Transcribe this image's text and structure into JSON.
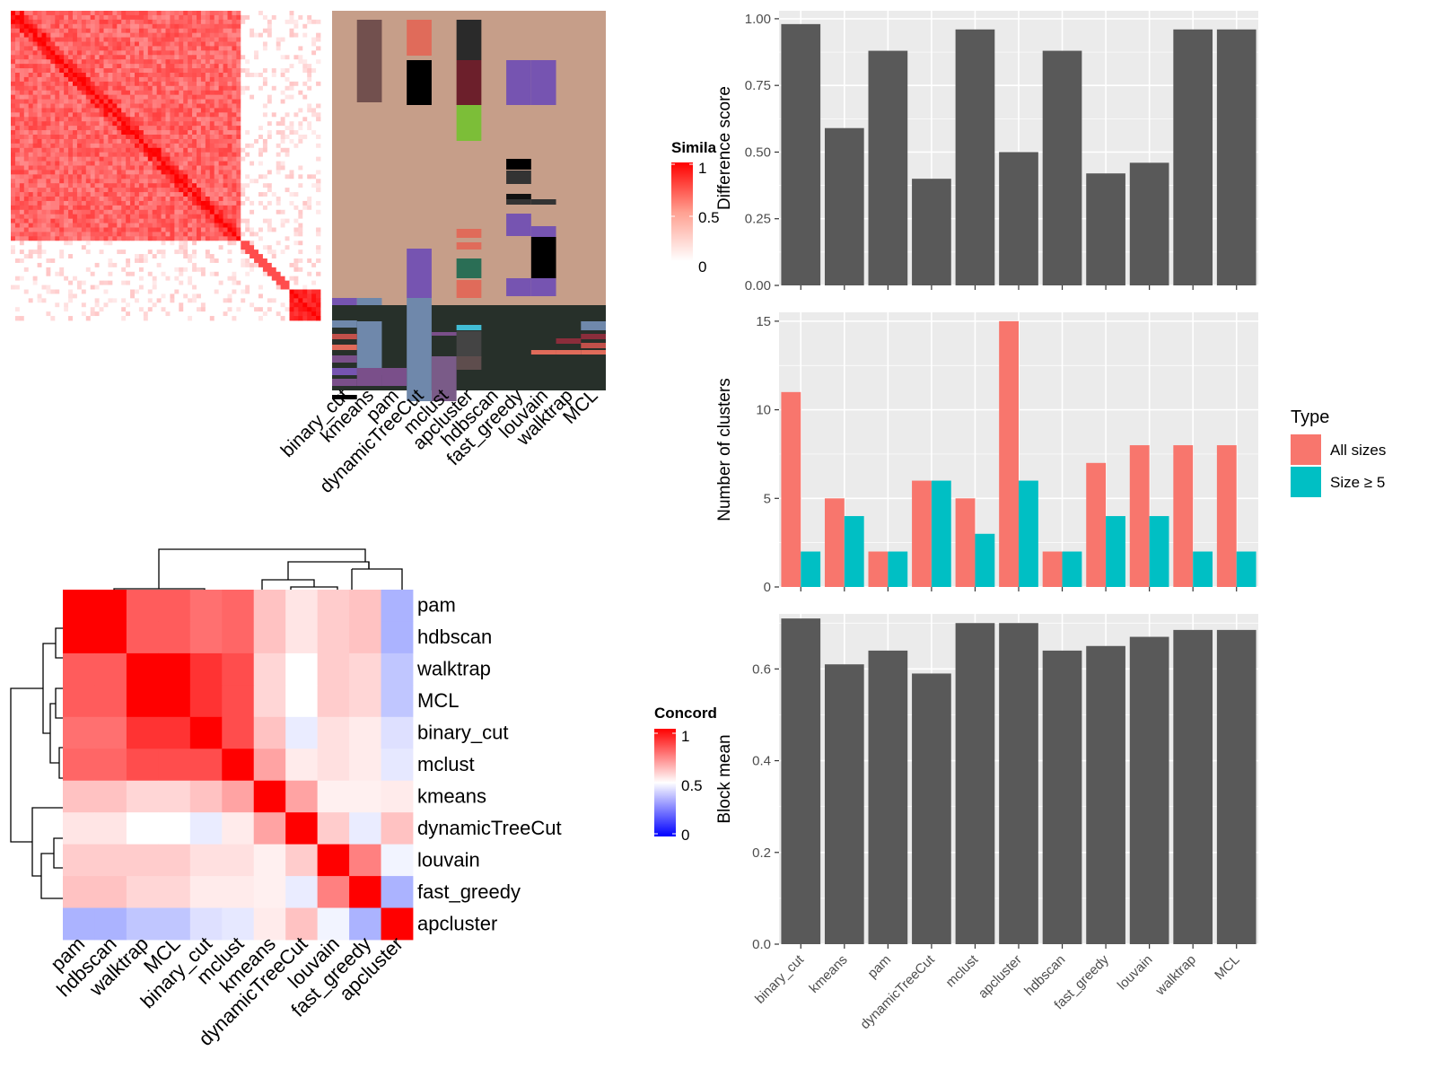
{
  "colors": {
    "panel_bg": "#ebebeb",
    "grid": "#ffffff",
    "bar_gray": "#595959",
    "all_sizes": "#f8766d",
    "size_ge5": "#00bfc4",
    "heat_high": "#ff0000",
    "heat_mid": "#ffffff",
    "heat_low": "#0000ff"
  },
  "similarity_legend": {
    "title": "Simila",
    "ticks": [
      "1",
      "0.5",
      "0"
    ]
  },
  "concordance_legend": {
    "title": "Concord",
    "ticks": [
      "1",
      "0.5",
      "0"
    ]
  },
  "methods_top": [
    "binary_cut",
    "kmeans",
    "pam",
    "dynamicTreeCut",
    "mclust",
    "apcluster",
    "hdbscan",
    "fast_greedy",
    "louvain",
    "walktrap",
    "MCL"
  ],
  "methods_order": [
    "pam",
    "hdbscan",
    "walktrap",
    "MCL",
    "binary_cut",
    "mclust",
    "kmeans",
    "dynamicTreeCut",
    "louvain",
    "fast_greedy",
    "apcluster"
  ],
  "chart_data": [
    {
      "type": "heatmap",
      "name": "concordance",
      "rows": [
        "pam",
        "hdbscan",
        "walktrap",
        "MCL",
        "binary_cut",
        "mclust",
        "kmeans",
        "dynamicTreeCut",
        "louvain",
        "fast_greedy",
        "apcluster"
      ],
      "cols": [
        "pam",
        "hdbscan",
        "walktrap",
        "MCL",
        "binary_cut",
        "mclust",
        "kmeans",
        "dynamicTreeCut",
        "louvain",
        "fast_greedy",
        "apcluster"
      ],
      "values": [
        [
          1.0,
          1.0,
          0.82,
          0.82,
          0.78,
          0.8,
          0.62,
          0.55,
          0.6,
          0.62,
          0.3
        ],
        [
          1.0,
          1.0,
          0.82,
          0.82,
          0.78,
          0.8,
          0.62,
          0.55,
          0.6,
          0.62,
          0.3
        ],
        [
          0.82,
          0.82,
          1.0,
          1.0,
          0.9,
          0.85,
          0.58,
          0.5,
          0.6,
          0.58,
          0.35
        ],
        [
          0.82,
          0.82,
          1.0,
          1.0,
          0.9,
          0.85,
          0.58,
          0.5,
          0.6,
          0.58,
          0.35
        ],
        [
          0.78,
          0.78,
          0.9,
          0.9,
          1.0,
          0.85,
          0.62,
          0.45,
          0.56,
          0.54,
          0.42
        ],
        [
          0.8,
          0.8,
          0.85,
          0.85,
          0.85,
          1.0,
          0.68,
          0.54,
          0.56,
          0.54,
          0.44
        ],
        [
          0.62,
          0.62,
          0.58,
          0.58,
          0.62,
          0.68,
          1.0,
          0.68,
          0.53,
          0.53,
          0.54
        ],
        [
          0.55,
          0.55,
          0.5,
          0.5,
          0.45,
          0.54,
          0.68,
          1.0,
          0.6,
          0.45,
          0.62
        ],
        [
          0.6,
          0.6,
          0.6,
          0.6,
          0.56,
          0.56,
          0.53,
          0.6,
          1.0,
          0.75,
          0.47
        ],
        [
          0.62,
          0.62,
          0.58,
          0.58,
          0.54,
          0.54,
          0.53,
          0.45,
          0.75,
          1.0,
          0.3
        ],
        [
          0.3,
          0.3,
          0.35,
          0.35,
          0.42,
          0.44,
          0.54,
          0.62,
          0.47,
          0.3,
          1.0
        ]
      ],
      "legend_title": "Concord",
      "scale": [
        0,
        1
      ]
    },
    {
      "type": "bar",
      "categories": [
        "binary_cut",
        "kmeans",
        "pam",
        "dynamicTreeCut",
        "mclust",
        "apcluster",
        "hdbscan",
        "fast_greedy",
        "louvain",
        "walktrap",
        "MCL"
      ],
      "values": [
        0.98,
        0.59,
        0.88,
        0.4,
        0.96,
        0.5,
        0.88,
        0.42,
        0.46,
        0.96,
        0.96
      ],
      "xlabel": "",
      "ylabel": "Difference score",
      "ylim": [
        0,
        1.03
      ],
      "yticks": [
        "0.00",
        "0.25",
        "0.50",
        "0.75",
        "1.00"
      ]
    },
    {
      "type": "bar",
      "categories": [
        "binary_cut",
        "kmeans",
        "pam",
        "dynamicTreeCut",
        "mclust",
        "apcluster",
        "hdbscan",
        "fast_greedy",
        "louvain",
        "walktrap",
        "MCL"
      ],
      "series": [
        {
          "name": "All sizes",
          "values": [
            11,
            5,
            2,
            6,
            5,
            15,
            2,
            7,
            8,
            8,
            8
          ]
        },
        {
          "name": "Size ≥ 5",
          "values": [
            2,
            4,
            2,
            6,
            3,
            6,
            2,
            4,
            4,
            2,
            2
          ]
        }
      ],
      "xlabel": "",
      "ylabel": "Number of clusters",
      "ylim": [
        0,
        15.5
      ],
      "yticks": [
        "0",
        "5",
        "10",
        "15"
      ],
      "legend_title": "Type",
      "legend_position": "right"
    },
    {
      "type": "bar",
      "categories": [
        "binary_cut",
        "kmeans",
        "pam",
        "dynamicTreeCut",
        "mclust",
        "apcluster",
        "hdbscan",
        "fast_greedy",
        "louvain",
        "walktrap",
        "MCL"
      ],
      "values": [
        0.71,
        0.61,
        0.64,
        0.59,
        0.7,
        0.7,
        0.64,
        0.65,
        0.67,
        0.685,
        0.685
      ],
      "xlabel": "",
      "ylabel": "Block mean",
      "ylim": [
        0,
        0.72
      ],
      "yticks": [
        "0.0",
        "0.2",
        "0.4",
        "0.6"
      ]
    }
  ]
}
